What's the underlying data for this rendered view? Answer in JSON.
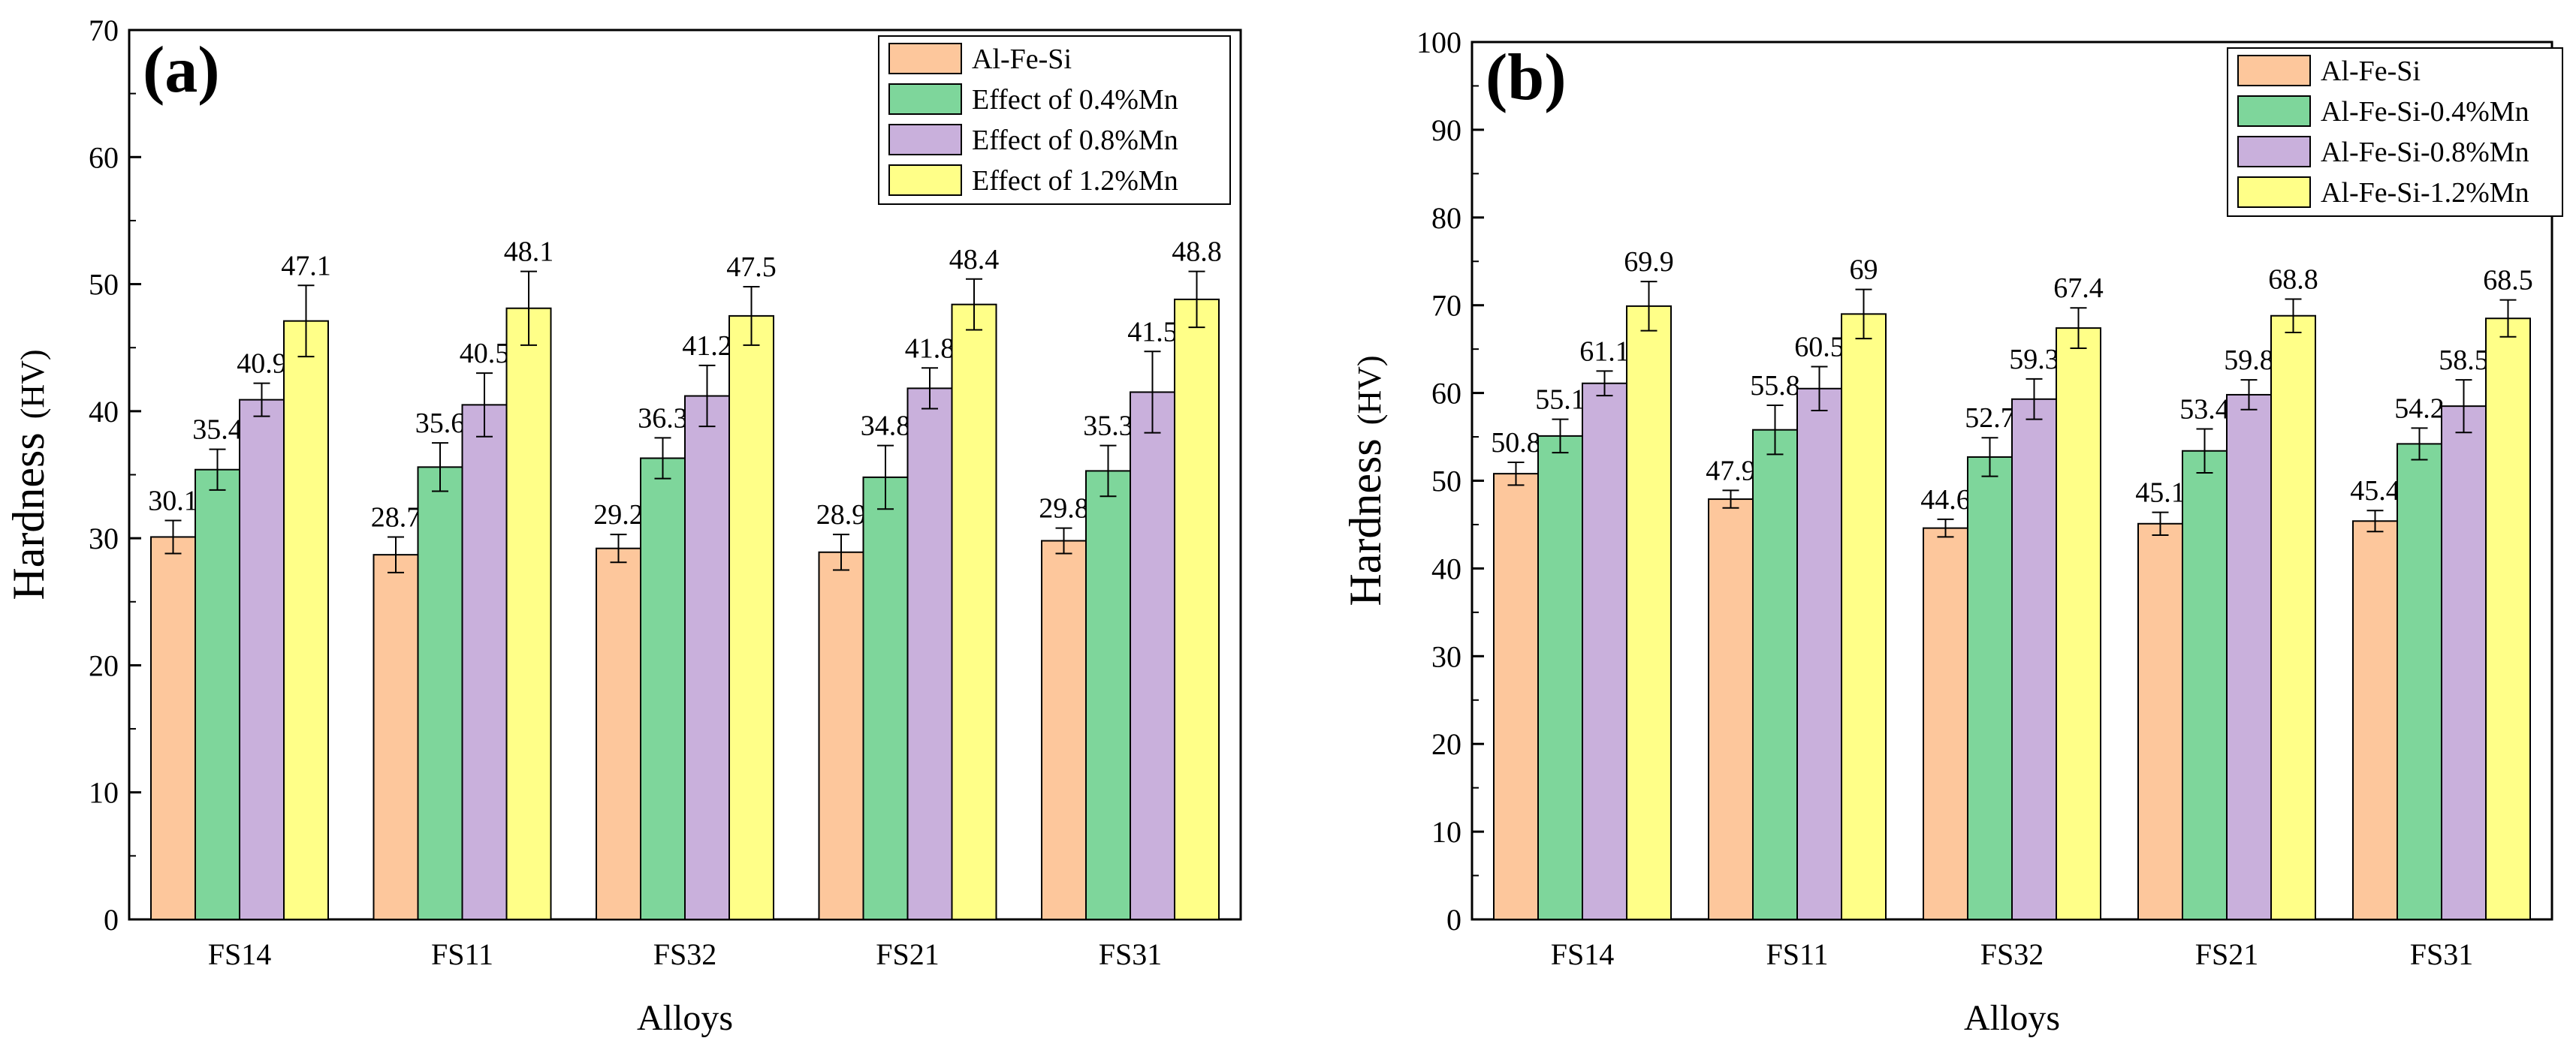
{
  "chart_data": [
    {
      "type": "bar",
      "panel_label": "(a)",
      "xlabel": "Alloys",
      "ylabel": "Hardness",
      "ylabel_unit": "(HV)",
      "ylim": [
        0,
        70
      ],
      "yticks": [
        0,
        10,
        20,
        30,
        40,
        50,
        60,
        70
      ],
      "categories": [
        "FS14",
        "FS11",
        "FS32",
        "FS21",
        "FS31"
      ],
      "legend_position": "top-right",
      "series": [
        {
          "name": "Al-Fe-Si",
          "color": "#FDC79C",
          "values": [
            30.1,
            28.7,
            29.2,
            28.9,
            29.8
          ],
          "errors": [
            1.3,
            1.4,
            1.1,
            1.4,
            1.0
          ]
        },
        {
          "name": "Effect of 0.4%Mn",
          "color": "#7ED69B",
          "values": [
            35.4,
            35.6,
            36.3,
            34.8,
            35.3
          ],
          "errors": [
            1.6,
            1.9,
            1.6,
            2.5,
            2.0
          ]
        },
        {
          "name": "Effect of 0.8%Mn",
          "color": "#C9B0DC",
          "values": [
            40.9,
            40.5,
            41.2,
            41.8,
            41.5
          ],
          "errors": [
            1.3,
            2.5,
            2.4,
            1.6,
            3.2
          ]
        },
        {
          "name": "Effect of 1.2%Mn",
          "color": "#FFFF88",
          "values": [
            47.1,
            48.1,
            47.5,
            48.4,
            48.8
          ],
          "errors": [
            2.8,
            2.9,
            2.3,
            2.0,
            2.2
          ]
        }
      ]
    },
    {
      "type": "bar",
      "panel_label": "(b)",
      "xlabel": "Alloys",
      "ylabel": "Hardness",
      "ylabel_unit": "(HV)",
      "ylim": [
        0,
        100
      ],
      "yticks": [
        0,
        10,
        20,
        30,
        40,
        50,
        60,
        70,
        80,
        90,
        100
      ],
      "categories": [
        "FS14",
        "FS11",
        "FS32",
        "FS21",
        "FS31"
      ],
      "legend_position": "top-right",
      "series": [
        {
          "name": "Al-Fe-Si",
          "color": "#FDC79C",
          "values": [
            50.8,
            47.9,
            44.6,
            45.1,
            45.4
          ],
          "errors": [
            1.3,
            1.0,
            1.0,
            1.3,
            1.2
          ]
        },
        {
          "name": "Al-Fe-Si-0.4%Mn",
          "color": "#7ED69B",
          "values": [
            55.1,
            55.8,
            52.7,
            53.4,
            54.2
          ],
          "errors": [
            1.9,
            2.8,
            2.2,
            2.5,
            1.8
          ]
        },
        {
          "name": "Al-Fe-Si-0.8%Mn",
          "color": "#C9B0DC",
          "values": [
            61.1,
            60.5,
            59.3,
            59.8,
            58.5
          ],
          "errors": [
            1.4,
            2.5,
            2.3,
            1.7,
            3.0
          ]
        },
        {
          "name": "Al-Fe-Si-1.2%Mn",
          "color": "#FFFF88",
          "values": [
            69.9,
            69,
            67.4,
            68.8,
            68.5
          ],
          "errors": [
            2.8,
            2.8,
            2.3,
            1.9,
            2.1
          ]
        }
      ]
    }
  ]
}
